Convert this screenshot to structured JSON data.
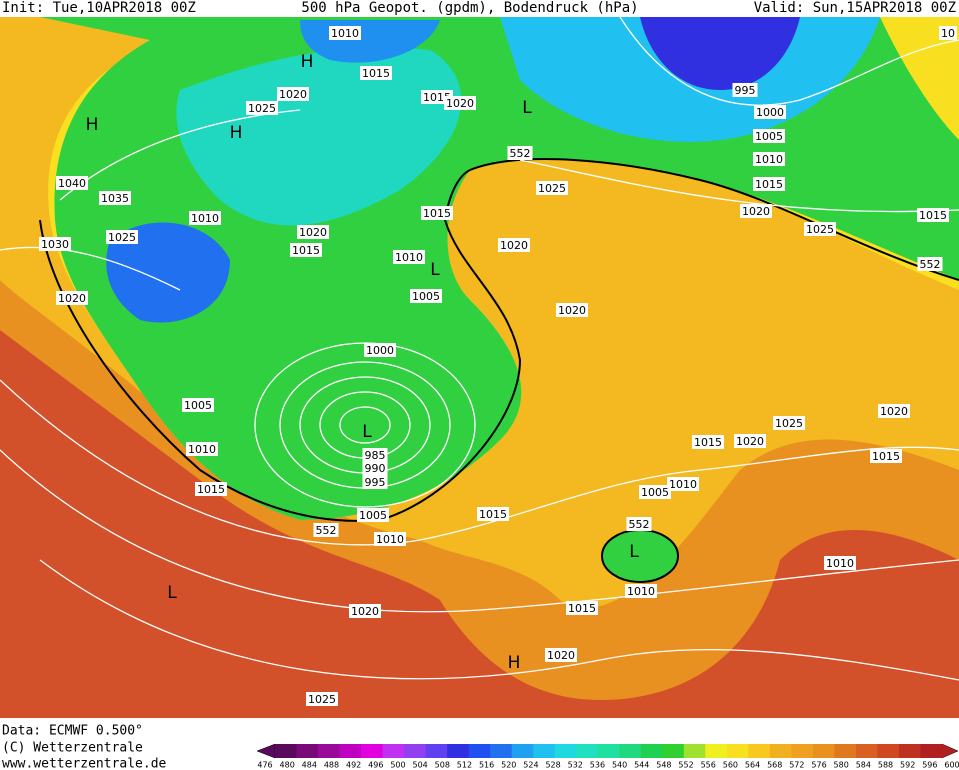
{
  "header": {
    "init": "Init: Tue,10APR2018 00Z",
    "title": "500 hPa Geopot. (gpdm), Bodendruck (hPa)",
    "valid": "Valid: Sun,15APR2018 00Z"
  },
  "footer": {
    "data": "Data: ECMWF  0.500°",
    "copyright": "(C) Wetterzentrale",
    "url": "www.wetterzentrale.de"
  },
  "colorbar": {
    "labels": [
      476,
      480,
      484,
      488,
      492,
      496,
      500,
      504,
      508,
      512,
      516,
      520,
      524,
      528,
      532,
      536,
      540,
      544,
      548,
      552,
      556,
      560,
      564,
      568,
      572,
      576,
      580,
      584,
      588,
      592,
      596,
      600
    ],
    "colors": [
      "#5a0a5a",
      "#7a0a7a",
      "#9a0a9a",
      "#c000c0",
      "#e000e0",
      "#c030f0",
      "#9040f0",
      "#6040f0",
      "#3030e0",
      "#2050f0",
      "#2070f0",
      "#20a0f0",
      "#20c0f0",
      "#20d8e0",
      "#20e0c0",
      "#20e0a0",
      "#20d880",
      "#20d050",
      "#30d030",
      "#a0e030",
      "#f0f020",
      "#f8e020",
      "#f8c820",
      "#f0b020",
      "#f0a020",
      "#e89020",
      "#e07820",
      "#d86020",
      "#d04820",
      "#c03020",
      "#b02020"
    ]
  },
  "map": {
    "labels": [
      "1010",
      "H",
      "1015",
      "1020",
      "1025",
      "H",
      "H",
      "1015",
      "1020",
      "L",
      "995",
      "1000",
      "1005",
      "1010",
      "1015",
      "552",
      "1025",
      "1020",
      "1015",
      "1025",
      "552",
      "1040",
      "1035",
      "1010",
      "1025",
      "1030",
      "1020",
      "1015",
      "1015",
      "1020",
      "1010",
      "L",
      "1005",
      "1020",
      "1020",
      "1000",
      "L",
      "985",
      "990",
      "995",
      "1005",
      "1010",
      "1015",
      "1020",
      "1025",
      "1015",
      "1020",
      "1015",
      "1010",
      "1005",
      "1015",
      "1005",
      "552",
      "1010",
      "552",
      "L",
      "1010",
      "1010",
      "1015",
      "1020",
      "L",
      "1020",
      "H",
      "1025",
      "10"
    ]
  }
}
